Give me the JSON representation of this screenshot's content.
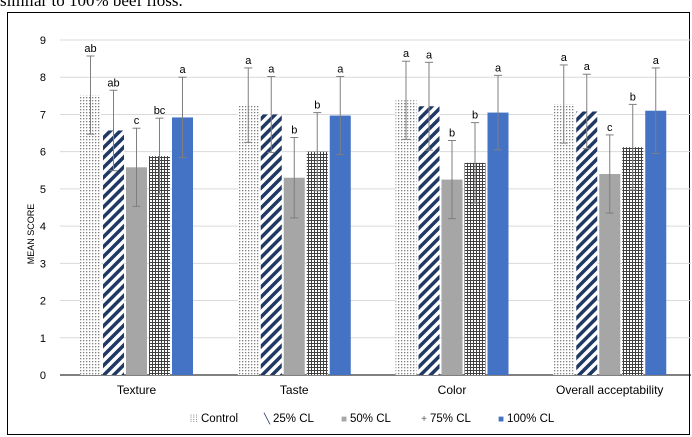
{
  "header_text": "similar to 100% beef floss.",
  "chart_data": {
    "type": "bar",
    "title": "",
    "xlabel": "",
    "ylabel": "MEAN SCORE",
    "ylim": [
      0,
      9
    ],
    "yticks": [
      0,
      1,
      2,
      3,
      4,
      5,
      6,
      7,
      8,
      9
    ],
    "grid": true,
    "legend_position": "bottom",
    "categories": [
      "Texture",
      "Taste",
      "Color",
      "Overall acceptability"
    ],
    "series": [
      {
        "name": "Control",
        "color": "#cfcfcf",
        "pattern": "dots",
        "values": [
          7.52,
          7.25,
          7.38,
          7.28
        ],
        "errors": [
          1.05,
          1.0,
          1.05,
          1.05
        ],
        "labels": [
          "ab",
          "a",
          "a",
          "a"
        ]
      },
      {
        "name": "25% CL",
        "color": "#1f3864",
        "pattern": "diagonal",
        "values": [
          6.57,
          7.0,
          7.22,
          7.08
        ],
        "errors": [
          1.08,
          1.02,
          1.18,
          1.0
        ],
        "labels": [
          "ab",
          "a",
          "a",
          "a"
        ]
      },
      {
        "name": "50% CL",
        "color": "#a6a6a6",
        "pattern": "solid",
        "values": [
          5.58,
          5.3,
          5.25,
          5.4
        ],
        "errors": [
          1.05,
          1.08,
          1.05,
          1.05
        ],
        "labels": [
          "c",
          "b",
          "b",
          "c"
        ]
      },
      {
        "name": "75% CL",
        "color": "#595959",
        "pattern": "grid",
        "values": [
          5.88,
          6.0,
          5.7,
          6.12
        ],
        "errors": [
          1.02,
          1.05,
          1.08,
          1.15
        ],
        "labels": [
          "bc",
          "b",
          "b",
          "b"
        ]
      },
      {
        "name": "100% CL",
        "color": "#4472c4",
        "pattern": "solid",
        "values": [
          6.92,
          6.97,
          7.05,
          7.1
        ],
        "errors": [
          1.08,
          1.05,
          1.0,
          1.15
        ],
        "labels": [
          "a",
          "a",
          "a",
          "a"
        ]
      }
    ],
    "legend_markers": [
      "⁞⁞⁞",
      "╲",
      "■",
      "+",
      "■"
    ]
  }
}
